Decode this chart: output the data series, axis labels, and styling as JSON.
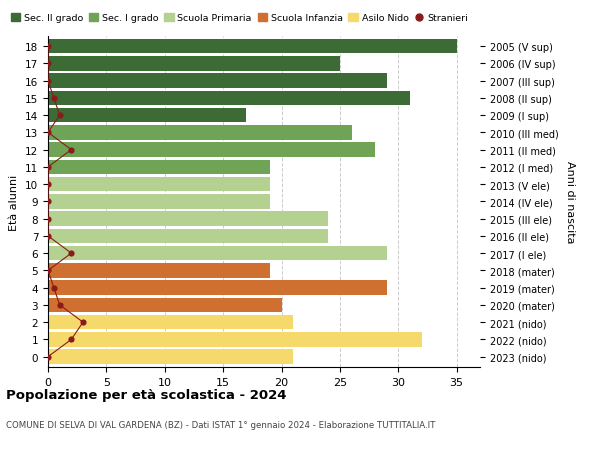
{
  "ages": [
    18,
    17,
    16,
    15,
    14,
    13,
    12,
    11,
    10,
    9,
    8,
    7,
    6,
    5,
    4,
    3,
    2,
    1,
    0
  ],
  "years": [
    "2005 (V sup)",
    "2006 (IV sup)",
    "2007 (III sup)",
    "2008 (II sup)",
    "2009 (I sup)",
    "2010 (III med)",
    "2011 (II med)",
    "2012 (I med)",
    "2013 (V ele)",
    "2014 (IV ele)",
    "2015 (III ele)",
    "2016 (II ele)",
    "2017 (I ele)",
    "2018 (mater)",
    "2019 (mater)",
    "2020 (mater)",
    "2021 (nido)",
    "2022 (nido)",
    "2023 (nido)"
  ],
  "values": [
    35,
    25,
    29,
    31,
    17,
    26,
    28,
    19,
    19,
    19,
    24,
    24,
    29,
    19,
    29,
    20,
    21,
    32,
    21
  ],
  "stranieri": [
    0,
    0,
    0,
    0.5,
    1,
    0,
    2,
    0,
    0,
    0,
    0,
    0,
    2,
    0,
    0.5,
    1,
    3,
    2,
    0
  ],
  "bar_colors": [
    "#3d6b35",
    "#3d6b35",
    "#3d6b35",
    "#3d6b35",
    "#3d6b35",
    "#6fa355",
    "#6fa355",
    "#6fa355",
    "#b5d191",
    "#b5d191",
    "#b5d191",
    "#b5d191",
    "#b5d191",
    "#d07030",
    "#d07030",
    "#d07030",
    "#f5d96b",
    "#f5d96b",
    "#f5d96b"
  ],
  "legend_labels": [
    "Sec. II grado",
    "Sec. I grado",
    "Scuola Primaria",
    "Scuola Infanzia",
    "Asilo Nido",
    "Stranieri"
  ],
  "legend_colors": [
    "#3d6b35",
    "#6fa355",
    "#b5d191",
    "#d07030",
    "#f5d96b",
    "#8b1a1a"
  ],
  "ylabel": "Età alunni",
  "ylabel_right": "Anni di nascita",
  "title": "Popolazione per età scolastica - 2024",
  "subtitle": "COMUNE DI SELVA DI VAL GARDENA (BZ) - Dati ISTAT 1° gennaio 2024 - Elaborazione TUTTITALIA.IT",
  "xlim": [
    0,
    37
  ],
  "stranieri_color": "#8b1a1a",
  "stranieri_line_color": "#8b1a1a",
  "bar_height": 0.85,
  "grid_color": "#cccccc",
  "bg_color": "#ffffff"
}
